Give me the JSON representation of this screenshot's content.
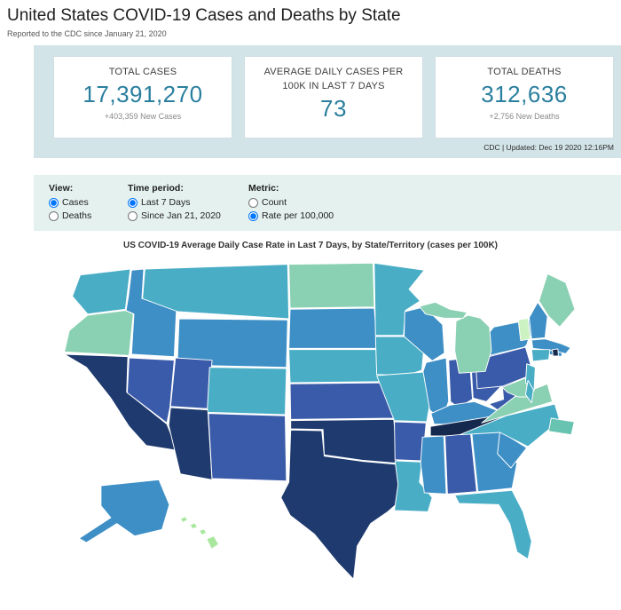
{
  "page": {
    "title": "United States COVID-19 Cases and Deaths by State",
    "subtitle": "Reported to the CDC since January 21, 2020",
    "updated": "CDC | Updated: Dec 19 2020 12:16PM"
  },
  "stats": {
    "cards": [
      {
        "label": "TOTAL CASES",
        "value": "17,391,270",
        "sub": "+403,359 New Cases"
      },
      {
        "label": "AVERAGE DAILY CASES PER 100K IN LAST 7 DAYS",
        "value": "73",
        "sub": ""
      },
      {
        "label": "TOTAL DEATHS",
        "value": "312,636",
        "sub": "+2,756 New Deaths"
      }
    ],
    "value_color": "#2a7f9e"
  },
  "controls": {
    "groups": [
      {
        "label": "View:",
        "options": [
          {
            "label": "Cases",
            "selected": true
          },
          {
            "label": "Deaths",
            "selected": false
          }
        ]
      },
      {
        "label": "Time period:",
        "options": [
          {
            "label": "Last 7 Days",
            "selected": true
          },
          {
            "label": "Since Jan 21, 2020",
            "selected": false
          }
        ]
      },
      {
        "label": "Metric:",
        "options": [
          {
            "label": "Count",
            "selected": false
          },
          {
            "label": "Rate per 100,000",
            "selected": true
          }
        ]
      }
    ]
  },
  "map": {
    "title": "US COVID-19 Average Daily Case Rate in Last 7 Days, by State/Territory (cases per 100K)",
    "palette": {
      "1": "#cdf2c2",
      "2": "#a9e79e",
      "3": "#8ad0b2",
      "3b": "#68c3b0",
      "4": "#49adc6",
      "5": "#3d8fc6",
      "6": "#3a5ba9",
      "7": "#1e3a6e",
      "8": "#15294f"
    },
    "states": [
      {
        "id": "WA",
        "name": "Washington",
        "level": "4"
      },
      {
        "id": "OR",
        "name": "Oregon",
        "level": "3"
      },
      {
        "id": "CA",
        "name": "California",
        "level": "7"
      },
      {
        "id": "NV",
        "name": "Nevada",
        "level": "6"
      },
      {
        "id": "ID",
        "name": "Idaho",
        "level": "5"
      },
      {
        "id": "MT",
        "name": "Montana",
        "level": "4"
      },
      {
        "id": "WY",
        "name": "Wyoming",
        "level": "5"
      },
      {
        "id": "UT",
        "name": "Utah",
        "level": "6"
      },
      {
        "id": "CO",
        "name": "Colorado",
        "level": "4"
      },
      {
        "id": "AZ",
        "name": "Arizona",
        "level": "7"
      },
      {
        "id": "NM",
        "name": "New Mexico",
        "level": "6"
      },
      {
        "id": "ND",
        "name": "North Dakota",
        "level": "3"
      },
      {
        "id": "SD",
        "name": "South Dakota",
        "level": "5"
      },
      {
        "id": "NE",
        "name": "Nebraska",
        "level": "4"
      },
      {
        "id": "KS",
        "name": "Kansas",
        "level": "6"
      },
      {
        "id": "OK",
        "name": "Oklahoma",
        "level": "7"
      },
      {
        "id": "TX",
        "name": "Texas",
        "level": "7"
      },
      {
        "id": "MN",
        "name": "Minnesota",
        "level": "4"
      },
      {
        "id": "IA",
        "name": "Iowa",
        "level": "4"
      },
      {
        "id": "MO",
        "name": "Missouri",
        "level": "4"
      },
      {
        "id": "AR",
        "name": "Arkansas",
        "level": "6"
      },
      {
        "id": "LA",
        "name": "Louisiana",
        "level": "4"
      },
      {
        "id": "WI",
        "name": "Wisconsin",
        "level": "5"
      },
      {
        "id": "IL",
        "name": "Illinois",
        "level": "5"
      },
      {
        "id": "IN",
        "name": "Indiana",
        "level": "6"
      },
      {
        "id": "OH",
        "name": "Ohio",
        "level": "6"
      },
      {
        "id": "KY",
        "name": "Kentucky",
        "level": "5"
      },
      {
        "id": "TN",
        "name": "Tennessee",
        "level": "8"
      },
      {
        "id": "MS",
        "name": "Mississippi",
        "level": "5"
      },
      {
        "id": "AL",
        "name": "Alabama",
        "level": "6"
      },
      {
        "id": "GA",
        "name": "Georgia",
        "level": "5"
      },
      {
        "id": "FL",
        "name": "Florida",
        "level": "4"
      },
      {
        "id": "SC",
        "name": "South Carolina",
        "level": "5"
      },
      {
        "id": "NC",
        "name": "North Carolina",
        "level": "4"
      },
      {
        "id": "VA",
        "name": "Virginia",
        "level": "3"
      },
      {
        "id": "WV",
        "name": "West Virginia",
        "level": "6"
      },
      {
        "id": "PA",
        "name": "Pennsylvania",
        "level": "6"
      },
      {
        "id": "MD",
        "name": "Maryland",
        "level": "3"
      },
      {
        "id": "NJ",
        "name": "New Jersey",
        "level": "4"
      },
      {
        "id": "DE",
        "name": "Delaware",
        "level": "4"
      },
      {
        "id": "NY",
        "name": "New York",
        "level": "5"
      },
      {
        "id": "VT",
        "name": "Vermont",
        "level": "1"
      },
      {
        "id": "NH",
        "name": "New Hampshire",
        "level": "5"
      },
      {
        "id": "ME",
        "name": "Maine",
        "level": "3"
      },
      {
        "id": "MA",
        "name": "Massachusetts",
        "level": "5"
      },
      {
        "id": "CT",
        "name": "Connecticut",
        "level": "4"
      },
      {
        "id": "RI",
        "name": "Rhode Island",
        "level": "8"
      },
      {
        "id": "MI",
        "name": "Michigan",
        "level": "3"
      },
      {
        "id": "AK",
        "name": "Alaska",
        "level": "5"
      },
      {
        "id": "HI",
        "name": "Hawaii",
        "level": "2"
      },
      {
        "id": "PR",
        "name": "Puerto Rico",
        "level": "3b"
      }
    ]
  },
  "chart_data": {
    "type": "choropleth",
    "title": "US COVID-19 Average Daily Case Rate in Last 7 Days, by State/Territory (cases per 100K)",
    "metric": "Average daily COVID-19 case rate per 100,000 population, last 7 days",
    "encoding": "Sequential color scale: pale green = lowest rate, dark navy = highest rate",
    "national_summary": {
      "total_cases": 17391270,
      "new_cases": 403359,
      "avg_daily_cases_per_100k_last_7_days": 73,
      "total_deaths": 312636,
      "new_deaths": 2756
    },
    "color_buckets": [
      {
        "rank": 1,
        "color": "#cdf2c2",
        "states": [
          "VT"
        ]
      },
      {
        "rank": 2,
        "color": "#a9e79e",
        "states": [
          "HI"
        ]
      },
      {
        "rank": 3,
        "color": "#8ad0b2",
        "states": [
          "OR",
          "ND",
          "ME",
          "MI",
          "MD",
          "VA"
        ]
      },
      {
        "rank": 3.5,
        "color": "#68c3b0",
        "states": [
          "PR"
        ]
      },
      {
        "rank": 4,
        "color": "#49adc6",
        "states": [
          "WA",
          "MT",
          "MN",
          "IA",
          "NE",
          "CO",
          "MO",
          "LA",
          "FL",
          "NC",
          "NJ",
          "DE",
          "CT"
        ]
      },
      {
        "rank": 5,
        "color": "#3d8fc6",
        "states": [
          "ID",
          "WY",
          "SD",
          "WI",
          "IL",
          "NY",
          "MA",
          "NH",
          "KY",
          "MS",
          "GA",
          "SC",
          "AK"
        ]
      },
      {
        "rank": 6,
        "color": "#3a5ba9",
        "states": [
          "NV",
          "UT",
          "NM",
          "KS",
          "AR",
          "IN",
          "OH",
          "PA",
          "WV",
          "AL"
        ]
      },
      {
        "rank": 7,
        "color": "#1e3a6e",
        "states": [
          "CA",
          "AZ",
          "TX",
          "OK"
        ]
      },
      {
        "rank": 8,
        "color": "#15294f",
        "states": [
          "TN",
          "RI"
        ]
      }
    ]
  }
}
